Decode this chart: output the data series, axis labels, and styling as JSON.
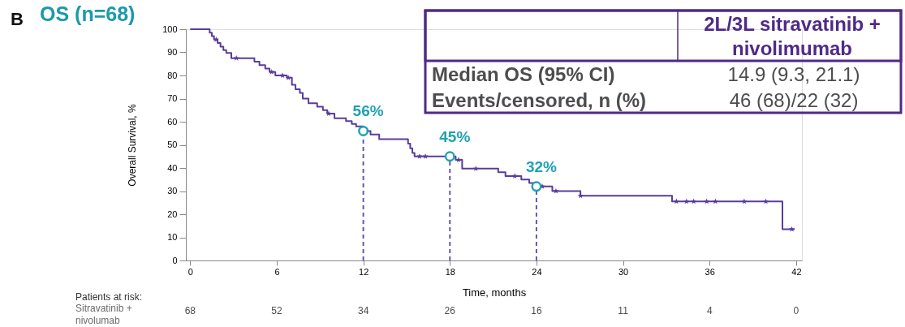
{
  "chart_data": [
    {
      "type": "step",
      "title": "OS (n=68)",
      "xlabel": "Time, months",
      "ylabel": "Overall Survival, %",
      "xlim": [
        -0.3,
        42.4
      ],
      "ylim": [
        0,
        100
      ],
      "xticks": [
        0,
        6,
        12,
        18,
        24,
        30,
        36,
        42
      ],
      "yticks": [
        0,
        10,
        20,
        30,
        40,
        50,
        60,
        70,
        80,
        90,
        100
      ],
      "grid": false,
      "series": [
        {
          "color": "#5b3c9c",
          "x": [
            0,
            1.35,
            1.5,
            1.65,
            1.9,
            2.1,
            2.3,
            2.5,
            2.85,
            4.45,
            4.8,
            5.2,
            5.5,
            5.9,
            6.7,
            7.05,
            7.3,
            7.6,
            7.8,
            8.2,
            8.8,
            9.2,
            9.5,
            10.0,
            10.8,
            11.2,
            11.5,
            12,
            12.5,
            13.1,
            15.1,
            15.25,
            15.4,
            15.55,
            18.4,
            18.85,
            21.35,
            21.85,
            22.95,
            23.5,
            24,
            25.1,
            27.05,
            33.4,
            41.05,
            41.9
          ],
          "values": [
            100,
            98.5,
            97,
            95.5,
            94,
            92.5,
            91,
            89.7,
            87.5,
            86,
            84.5,
            83,
            81.5,
            80,
            79,
            76,
            74,
            72.5,
            70,
            68,
            66.5,
            65,
            63.5,
            61.5,
            60.3,
            59,
            58,
            56,
            54.5,
            52.5,
            50.5,
            48.5,
            46.5,
            45,
            43.5,
            39.7,
            38.2,
            36.5,
            35,
            33.5,
            32,
            30,
            28,
            25.5,
            13.5,
            13.5
          ]
        },
        {
          "type": "scatter",
          "marker": "star",
          "color": "#5b3c9c",
          "x": [
            1.8,
            3.2,
            5.65,
            6.4,
            6.8,
            9.6,
            15.9,
            16.3,
            18.6,
            19.8,
            22.5,
            24.4,
            25.35,
            27.05,
            33.7,
            34.4,
            34.9,
            35.8,
            36.4,
            38.4,
            39.9,
            41.7
          ],
          "values": [
            95.5,
            87.5,
            81.5,
            80,
            79,
            63.5,
            45,
            45,
            43.5,
            39.7,
            36.5,
            32,
            30,
            28,
            25.5,
            25.5,
            25.5,
            25.5,
            25.5,
            25.5,
            25.5,
            13.5
          ]
        },
        {
          "type": "scatter",
          "marker": "circle",
          "color": "#20a2b4",
          "x": [
            12,
            18,
            24
          ],
          "values": [
            56,
            45,
            32
          ],
          "value_labels": [
            "56%",
            "45%",
            "32%"
          ]
        }
      ],
      "ref_lines": [
        {
          "axis": "x",
          "value": 12,
          "line_style": "dashed",
          "color": "#6b55b3"
        },
        {
          "axis": "x",
          "value": 18,
          "line_style": "dashed",
          "color": "#6b55b3"
        },
        {
          "axis": "x",
          "value": 24,
          "line_style": "dashed",
          "color": "#6b55b3"
        }
      ],
      "annotations": [
        "B",
        "2L/3L sitravatinib + nivolimumab",
        "Median OS (95% CI)",
        "14.9 (9.3, 21.1)",
        "Events/censored, n (%)",
        "46 (68)/22 (32)"
      ]
    },
    {
      "type": "other",
      "title": "Patients at risk:",
      "series": [
        {
          "name": "Sitravatinib + nivolumab",
          "color": "#4d4d4d",
          "values": [
            68,
            52,
            34,
            26,
            16,
            11,
            4,
            0
          ]
        }
      ],
      "data_labels": true
    }
  ]
}
